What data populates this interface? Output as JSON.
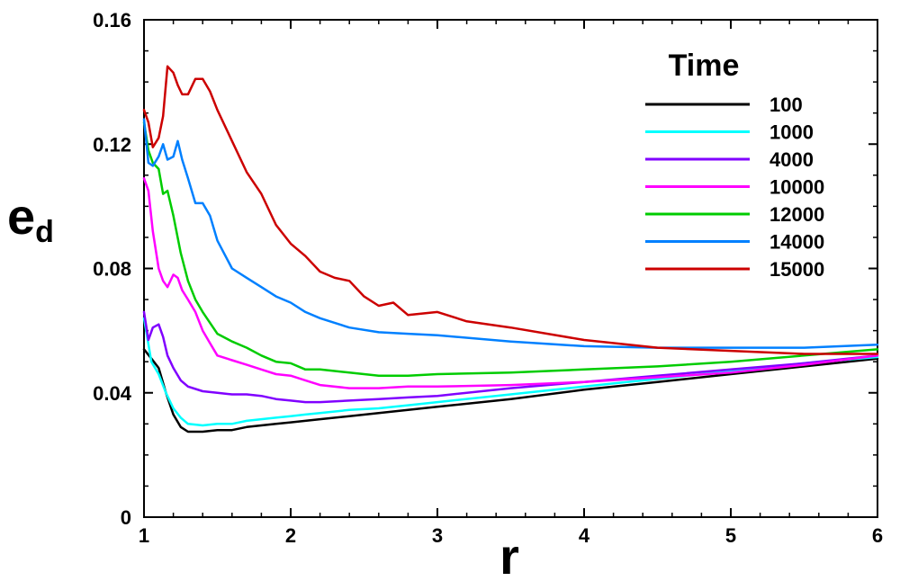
{
  "chart_data": {
    "type": "line",
    "xlabel": "r",
    "ylabel": "e",
    "ylabel_subscript": "d",
    "xlim": [
      1,
      6
    ],
    "ylim": [
      0,
      0.16
    ],
    "xticks": [
      1,
      2,
      3,
      4,
      5,
      6
    ],
    "xtick_labels": [
      "1",
      "2",
      "3",
      "4",
      "5",
      "6"
    ],
    "yticks": [
      0,
      0.04,
      0.08,
      0.12,
      0.16
    ],
    "ytick_labels": [
      "0",
      "0.04",
      "0.08",
      "0.12",
      "0.16"
    ],
    "grid": false,
    "legend": {
      "title": "Time",
      "position": "top-right"
    },
    "series": [
      {
        "name": "100",
        "color": "#000000",
        "x": [
          1.0,
          1.05,
          1.1,
          1.15,
          1.2,
          1.25,
          1.3,
          1.4,
          1.5,
          1.6,
          1.7,
          1.8,
          1.9,
          2.0,
          2.1,
          2.2,
          2.4,
          2.6,
          2.8,
          3.0,
          3.5,
          4.0,
          4.5,
          5.0,
          5.5,
          6.0
        ],
        "y": [
          0.054,
          0.051,
          0.048,
          0.04,
          0.033,
          0.029,
          0.0275,
          0.0275,
          0.028,
          0.028,
          0.029,
          0.0295,
          0.03,
          0.0305,
          0.031,
          0.0315,
          0.0325,
          0.0335,
          0.0345,
          0.0355,
          0.038,
          0.041,
          0.0435,
          0.046,
          0.0485,
          0.051
        ]
      },
      {
        "name": "1000",
        "color": "#00ffff",
        "x": [
          1.0,
          1.05,
          1.1,
          1.15,
          1.2,
          1.25,
          1.3,
          1.4,
          1.5,
          1.6,
          1.7,
          1.8,
          1.9,
          2.0,
          2.1,
          2.2,
          2.4,
          2.6,
          2.8,
          3.0,
          3.5,
          4.0,
          4.5,
          5.0,
          5.5,
          6.0
        ],
        "y": [
          0.064,
          0.05,
          0.046,
          0.04,
          0.035,
          0.032,
          0.03,
          0.0295,
          0.03,
          0.03,
          0.031,
          0.0315,
          0.032,
          0.0325,
          0.033,
          0.0335,
          0.0345,
          0.035,
          0.036,
          0.037,
          0.0395,
          0.042,
          0.0445,
          0.047,
          0.0495,
          0.0515
        ]
      },
      {
        "name": "4000",
        "color": "#8000ff",
        "x": [
          1.0,
          1.03,
          1.06,
          1.1,
          1.13,
          1.16,
          1.2,
          1.25,
          1.3,
          1.4,
          1.5,
          1.6,
          1.7,
          1.8,
          1.9,
          2.0,
          2.1,
          2.2,
          2.4,
          2.6,
          2.8,
          3.0,
          3.5,
          4.0,
          4.5,
          5.0,
          5.5,
          6.0
        ],
        "y": [
          0.066,
          0.057,
          0.061,
          0.062,
          0.058,
          0.052,
          0.048,
          0.044,
          0.042,
          0.0405,
          0.04,
          0.0395,
          0.0395,
          0.039,
          0.038,
          0.0375,
          0.037,
          0.037,
          0.0375,
          0.038,
          0.0385,
          0.039,
          0.0415,
          0.0435,
          0.0455,
          0.0475,
          0.0495,
          0.052
        ]
      },
      {
        "name": "10000",
        "color": "#ff00ff",
        "x": [
          1.0,
          1.03,
          1.06,
          1.1,
          1.13,
          1.16,
          1.2,
          1.23,
          1.26,
          1.3,
          1.35,
          1.4,
          1.45,
          1.5,
          1.6,
          1.7,
          1.8,
          1.9,
          2.0,
          2.1,
          2.2,
          2.4,
          2.6,
          2.8,
          3.0,
          3.5,
          4.0,
          4.5,
          5.0,
          5.5,
          6.0
        ],
        "y": [
          0.109,
          0.105,
          0.092,
          0.08,
          0.076,
          0.074,
          0.078,
          0.077,
          0.073,
          0.07,
          0.066,
          0.06,
          0.056,
          0.052,
          0.0505,
          0.049,
          0.0475,
          0.046,
          0.0455,
          0.044,
          0.0425,
          0.0415,
          0.0415,
          0.042,
          0.042,
          0.0425,
          0.0435,
          0.045,
          0.0465,
          0.049,
          0.052
        ]
      },
      {
        "name": "12000",
        "color": "#00cc00",
        "x": [
          1.0,
          1.03,
          1.06,
          1.1,
          1.13,
          1.16,
          1.2,
          1.25,
          1.3,
          1.35,
          1.4,
          1.5,
          1.6,
          1.7,
          1.8,
          1.9,
          2.0,
          2.1,
          2.2,
          2.4,
          2.6,
          2.8,
          3.0,
          3.5,
          4.0,
          4.5,
          5.0,
          5.5,
          6.0
        ],
        "y": [
          0.127,
          0.118,
          0.114,
          0.112,
          0.104,
          0.105,
          0.097,
          0.085,
          0.076,
          0.07,
          0.066,
          0.059,
          0.0565,
          0.0545,
          0.052,
          0.05,
          0.0495,
          0.0475,
          0.0475,
          0.0465,
          0.0455,
          0.0455,
          0.046,
          0.0465,
          0.0475,
          0.0485,
          0.05,
          0.052,
          0.054
        ]
      },
      {
        "name": "14000",
        "color": "#0080ff",
        "x": [
          1.0,
          1.03,
          1.06,
          1.1,
          1.13,
          1.16,
          1.2,
          1.23,
          1.26,
          1.3,
          1.35,
          1.4,
          1.45,
          1.5,
          1.6,
          1.7,
          1.8,
          1.9,
          2.0,
          2.1,
          2.2,
          2.4,
          2.6,
          2.8,
          3.0,
          3.5,
          4.0,
          4.5,
          5.0,
          5.5,
          6.0
        ],
        "y": [
          0.128,
          0.114,
          0.113,
          0.116,
          0.12,
          0.115,
          0.116,
          0.121,
          0.115,
          0.109,
          0.101,
          0.101,
          0.097,
          0.089,
          0.08,
          0.077,
          0.074,
          0.071,
          0.069,
          0.066,
          0.064,
          0.061,
          0.0595,
          0.059,
          0.0585,
          0.0565,
          0.055,
          0.0545,
          0.0545,
          0.0545,
          0.0555
        ]
      },
      {
        "name": "15000",
        "color": "#cc0000",
        "x": [
          1.0,
          1.03,
          1.06,
          1.1,
          1.13,
          1.16,
          1.2,
          1.23,
          1.26,
          1.3,
          1.35,
          1.4,
          1.45,
          1.5,
          1.6,
          1.7,
          1.8,
          1.9,
          2.0,
          2.1,
          2.2,
          2.3,
          2.4,
          2.5,
          2.6,
          2.7,
          2.8,
          3.0,
          3.2,
          3.5,
          4.0,
          4.5,
          5.0,
          5.5,
          6.0
        ],
        "y": [
          0.131,
          0.127,
          0.119,
          0.122,
          0.129,
          0.145,
          0.143,
          0.139,
          0.136,
          0.136,
          0.141,
          0.141,
          0.137,
          0.131,
          0.121,
          0.111,
          0.104,
          0.094,
          0.088,
          0.084,
          0.079,
          0.077,
          0.076,
          0.071,
          0.068,
          0.069,
          0.065,
          0.066,
          0.063,
          0.061,
          0.057,
          0.0545,
          0.0535,
          0.0525,
          0.0525
        ]
      }
    ]
  }
}
